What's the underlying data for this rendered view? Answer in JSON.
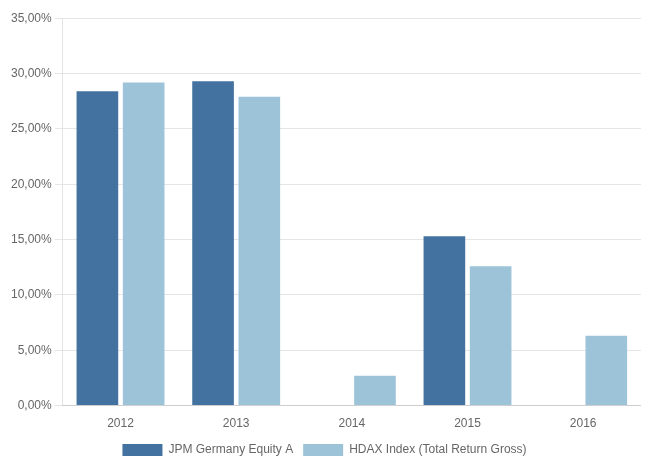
{
  "chart_data": {
    "type": "bar",
    "categories": [
      "2012",
      "2013",
      "2014",
      "2015",
      "2016"
    ],
    "series": [
      {
        "name": "JPM Germany Equity A",
        "color": "#4472A0",
        "values": [
          0.284,
          0.293,
          0.0,
          0.153,
          0.0
        ]
      },
      {
        "name": "HDAX Index (Total Return Gross)",
        "color": "#9DC3D9",
        "values": [
          0.292,
          0.279,
          0.027,
          0.126,
          0.063
        ]
      }
    ],
    "ylim": [
      0,
      0.35
    ],
    "yticks": [
      {
        "value": 0.0,
        "label": "0,00%"
      },
      {
        "value": 0.05,
        "label": "5,00%"
      },
      {
        "value": 0.1,
        "label": "10,00%"
      },
      {
        "value": 0.15,
        "label": "15,00%"
      },
      {
        "value": 0.2,
        "label": "20,00%"
      },
      {
        "value": 0.25,
        "label": "25,00%"
      },
      {
        "value": 0.3,
        "label": "30,00%"
      },
      {
        "value": 0.35,
        "label": "35,00%"
      }
    ],
    "grid": true,
    "legend": "bottom"
  }
}
